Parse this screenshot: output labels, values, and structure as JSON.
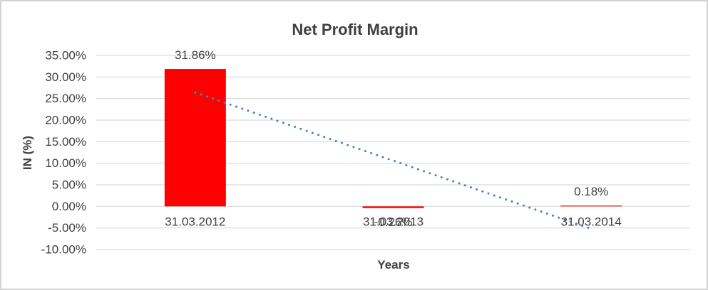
{
  "chart_data": {
    "type": "bar",
    "title": "Net Profit Margin",
    "xlabel": "Years",
    "ylabel": "IN (%)",
    "categories": [
      "31.03.2012",
      "31.03.2013",
      "31.03.2014"
    ],
    "values": [
      31.86,
      -0.26,
      0.18
    ],
    "data_labels": [
      "31.86%",
      "-0.26%",
      "0.18%"
    ],
    "ylim": [
      -10,
      35
    ],
    "yticks": [
      {
        "value": 35,
        "label": "35.00%"
      },
      {
        "value": 30,
        "label": "30.00%"
      },
      {
        "value": 25,
        "label": "25.00%"
      },
      {
        "value": 20,
        "label": "20.00%"
      },
      {
        "value": 15,
        "label": "15.00%"
      },
      {
        "value": 10,
        "label": "10.00%"
      },
      {
        "value": 5,
        "label": "5.00%"
      },
      {
        "value": 0,
        "label": "0.00%"
      },
      {
        "value": -5,
        "label": "-5.00%"
      },
      {
        "value": -10,
        "label": "-10.00%"
      }
    ],
    "grid": true,
    "legend": "none",
    "bar_color": "#ff0000",
    "grid_color": "#d9d9d9",
    "text_color": "#404040",
    "trendline": {
      "type": "linear",
      "style": "dotted",
      "color": "#4e81bd",
      "start_value": 26.4,
      "end_value": -5.2
    }
  }
}
